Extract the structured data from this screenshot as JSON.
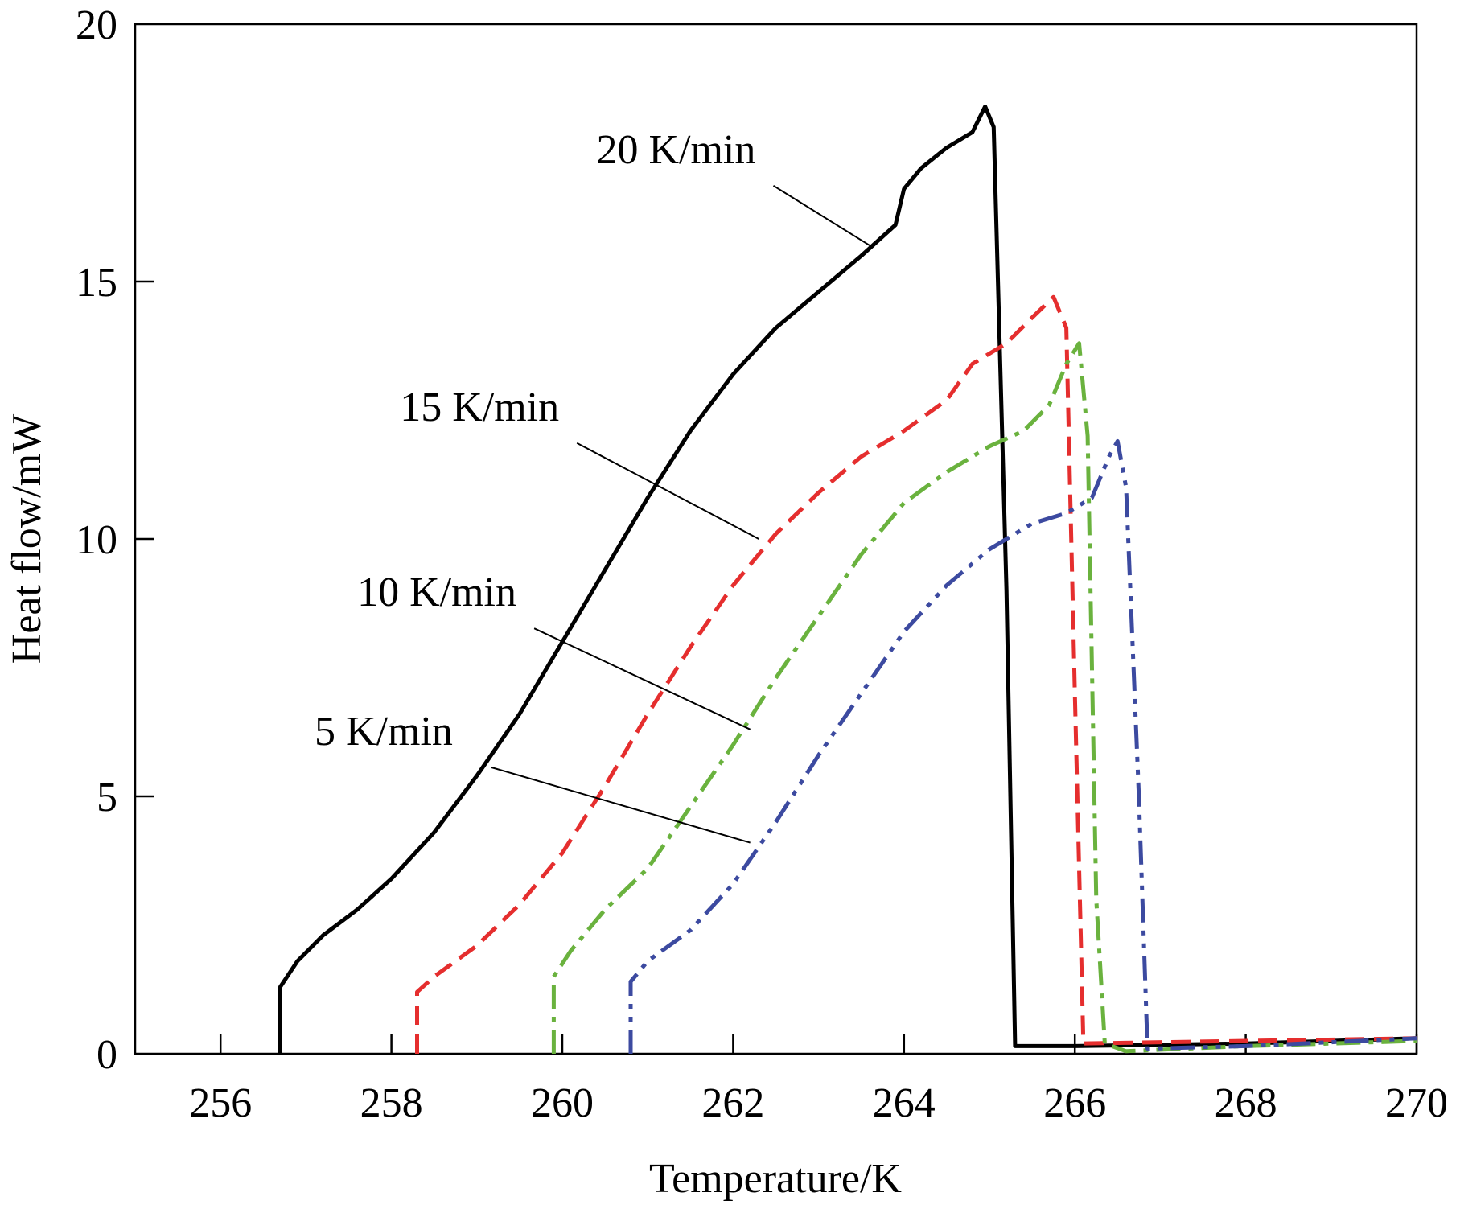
{
  "chart_data": {
    "type": "line",
    "title": "",
    "xlabel": "Temperature/K",
    "ylabel": "Heat flow/mW",
    "xlim": [
      255,
      270
    ],
    "ylim": [
      0,
      20
    ],
    "xticks": [
      256,
      258,
      260,
      262,
      264,
      266,
      268,
      270
    ],
    "yticks": [
      0,
      5,
      10,
      15,
      20
    ],
    "grid": false,
    "series": [
      {
        "name": "20 K/min",
        "color": "#000000",
        "dash": "solid",
        "label_anchor": [
          263.6,
          15.7
        ],
        "label_text_at": [
          260.4,
          17.3
        ],
        "points": [
          [
            256.7,
            0
          ],
          [
            256.7,
            1.3
          ],
          [
            256.9,
            1.8
          ],
          [
            257.2,
            2.3
          ],
          [
            257.6,
            2.8
          ],
          [
            258.0,
            3.4
          ],
          [
            258.5,
            4.3
          ],
          [
            259.0,
            5.4
          ],
          [
            259.5,
            6.6
          ],
          [
            260.0,
            8.0
          ],
          [
            260.5,
            9.4
          ],
          [
            261.0,
            10.8
          ],
          [
            261.5,
            12.1
          ],
          [
            262.0,
            13.2
          ],
          [
            262.5,
            14.1
          ],
          [
            263.0,
            14.8
          ],
          [
            263.5,
            15.5
          ],
          [
            263.9,
            16.1
          ],
          [
            264.0,
            16.8
          ],
          [
            264.2,
            17.2
          ],
          [
            264.5,
            17.6
          ],
          [
            264.8,
            17.9
          ],
          [
            264.95,
            18.4
          ],
          [
            265.05,
            18.0
          ],
          [
            265.2,
            9.0
          ],
          [
            265.3,
            0.15
          ],
          [
            266.0,
            0.15
          ],
          [
            268.0,
            0.2
          ],
          [
            270.0,
            0.3
          ]
        ]
      },
      {
        "name": "15 K/min",
        "color": "#e52e2e",
        "dash": "24,12",
        "label_anchor": [
          262.3,
          10.0
        ],
        "label_text_at": [
          258.1,
          12.3
        ],
        "points": [
          [
            258.3,
            0
          ],
          [
            258.3,
            1.2
          ],
          [
            258.5,
            1.5
          ],
          [
            259.0,
            2.1
          ],
          [
            259.5,
            2.9
          ],
          [
            260.0,
            3.9
          ],
          [
            260.5,
            5.2
          ],
          [
            261.0,
            6.6
          ],
          [
            261.5,
            7.9
          ],
          [
            262.0,
            9.1
          ],
          [
            262.5,
            10.1
          ],
          [
            263.0,
            10.9
          ],
          [
            263.5,
            11.6
          ],
          [
            264.0,
            12.1
          ],
          [
            264.5,
            12.7
          ],
          [
            264.8,
            13.4
          ],
          [
            265.2,
            13.8
          ],
          [
            265.5,
            14.3
          ],
          [
            265.75,
            14.7
          ],
          [
            265.9,
            14.1
          ],
          [
            266.0,
            7.0
          ],
          [
            266.1,
            0.2
          ],
          [
            268.0,
            0.25
          ],
          [
            270.0,
            0.3
          ]
        ]
      },
      {
        "name": "10 K/min",
        "color": "#6ab23e",
        "dash": "30,10,6,10",
        "label_anchor": [
          262.2,
          6.3
        ],
        "label_text_at": [
          257.6,
          8.7
        ],
        "points": [
          [
            259.9,
            0
          ],
          [
            259.9,
            1.5
          ],
          [
            260.1,
            2.0
          ],
          [
            260.5,
            2.8
          ],
          [
            261.0,
            3.6
          ],
          [
            261.5,
            4.8
          ],
          [
            262.0,
            6.0
          ],
          [
            262.5,
            7.3
          ],
          [
            263.0,
            8.5
          ],
          [
            263.5,
            9.7
          ],
          [
            264.0,
            10.7
          ],
          [
            264.5,
            11.3
          ],
          [
            265.0,
            11.8
          ],
          [
            265.4,
            12.1
          ],
          [
            265.7,
            12.6
          ],
          [
            265.9,
            13.4
          ],
          [
            266.05,
            13.8
          ],
          [
            266.15,
            12.0
          ],
          [
            266.25,
            3.0
          ],
          [
            266.35,
            0.2
          ],
          [
            266.6,
            0.05
          ],
          [
            268.0,
            0.15
          ],
          [
            270.0,
            0.25
          ]
        ]
      },
      {
        "name": "5 K/min",
        "color": "#3c4aa0",
        "dash": "30,10,6,10,6,10",
        "label_anchor": [
          262.2,
          4.1
        ],
        "label_text_at": [
          257.1,
          6.0
        ],
        "points": [
          [
            260.8,
            0
          ],
          [
            260.8,
            1.4
          ],
          [
            261.0,
            1.8
          ],
          [
            261.5,
            2.4
          ],
          [
            262.0,
            3.3
          ],
          [
            262.5,
            4.5
          ],
          [
            263.0,
            5.8
          ],
          [
            263.5,
            7.0
          ],
          [
            264.0,
            8.2
          ],
          [
            264.5,
            9.1
          ],
          [
            265.0,
            9.8
          ],
          [
            265.5,
            10.3
          ],
          [
            265.9,
            10.5
          ],
          [
            266.2,
            10.8
          ],
          [
            266.4,
            11.6
          ],
          [
            266.5,
            11.9
          ],
          [
            266.6,
            11.0
          ],
          [
            266.75,
            5.0
          ],
          [
            266.85,
            0.1
          ],
          [
            268.0,
            0.15
          ],
          [
            270.0,
            0.3
          ]
        ]
      }
    ]
  }
}
